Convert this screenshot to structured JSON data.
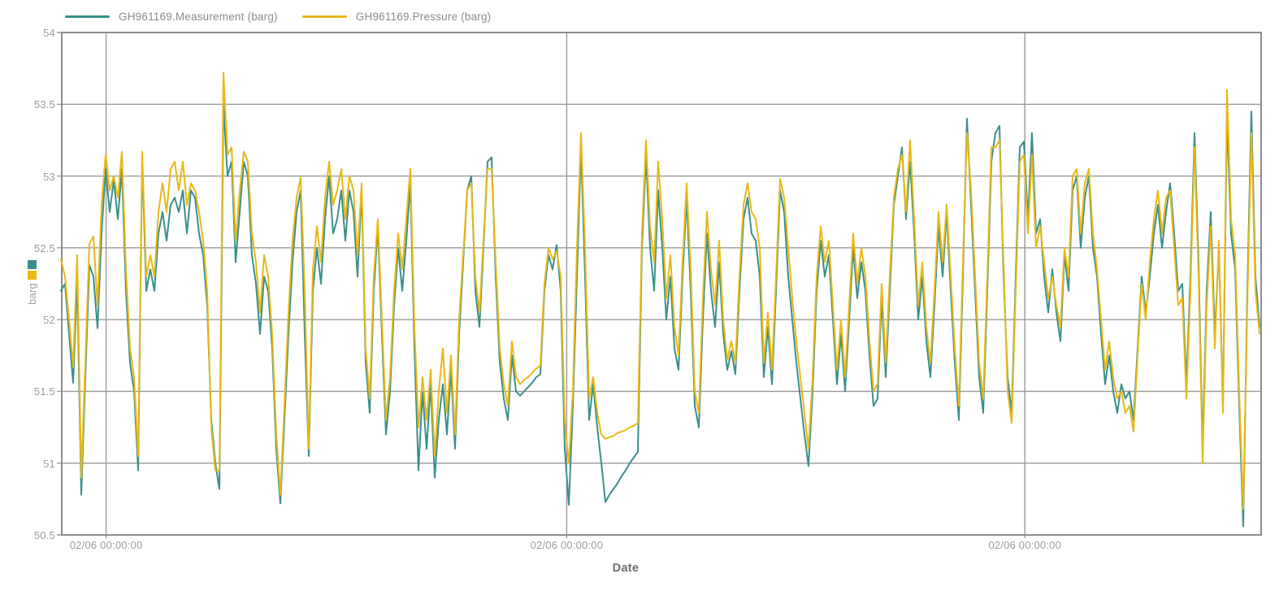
{
  "ui_colors": {
    "grid": "#999999",
    "axis_border": "#8D8D8D",
    "tick_text": "#9C9C9C",
    "legend_text": "#8A8A8A",
    "axis_title_text": "#6E6E6E"
  },
  "chart_data": {
    "type": "line",
    "title": "",
    "xlabel": "Date",
    "ylabel": "barg",
    "ylim": [
      50.5,
      54
    ],
    "yticks": [
      54,
      53.5,
      53,
      52.5,
      52,
      51.5,
      51,
      50.5
    ],
    "xticks": [
      {
        "pos": 0.037,
        "label": "02/06 00:00:00"
      },
      {
        "pos": 0.421,
        "label": "02/06 00:00:00"
      },
      {
        "pos": 0.803,
        "label": "02/06 00:00:00"
      }
    ],
    "grid": true,
    "legend_position": "top-left",
    "series": [
      {
        "name": "GH961169.Measurement (barg)",
        "color": "#3A8F8B",
        "values": [
          52.2,
          52.25,
          51.9,
          51.56,
          52.28,
          50.78,
          51.6,
          52.38,
          52.3,
          51.94,
          52.6,
          53.05,
          52.75,
          52.97,
          52.7,
          53.05,
          52.2,
          51.7,
          51.5,
          50.95,
          53.12,
          52.2,
          52.35,
          52.2,
          52.6,
          52.75,
          52.55,
          52.8,
          52.85,
          52.75,
          52.9,
          52.6,
          52.9,
          52.85,
          52.6,
          52.45,
          52.1,
          51.3,
          51.0,
          50.82,
          53.5,
          53.0,
          53.1,
          52.4,
          52.75,
          53.1,
          53.0,
          52.45,
          52.25,
          51.9,
          52.3,
          52.2,
          51.8,
          51.1,
          50.72,
          51.3,
          51.9,
          52.4,
          52.75,
          52.9,
          51.9,
          51.05,
          52.2,
          52.5,
          52.25,
          52.7,
          53.0,
          52.6,
          52.7,
          52.9,
          52.55,
          52.9,
          52.75,
          52.3,
          52.9,
          51.7,
          51.35,
          52.2,
          52.65,
          51.9,
          51.2,
          51.5,
          52.1,
          52.5,
          52.2,
          52.55,
          52.95,
          51.8,
          50.95,
          51.5,
          51.1,
          51.55,
          50.9,
          51.3,
          51.55,
          51.2,
          51.65,
          51.1,
          51.9,
          52.4,
          52.9,
          53.0,
          52.2,
          51.95,
          52.5,
          53.1,
          53.13,
          52.3,
          51.7,
          51.45,
          51.3,
          51.75,
          51.5,
          51.47,
          51.5,
          51.53,
          51.56,
          51.6,
          51.62,
          52.2,
          52.45,
          52.35,
          52.52,
          52.2,
          51.1,
          50.71,
          51.4,
          52.3,
          53.2,
          52.3,
          51.3,
          51.55,
          51.25,
          51.0,
          50.73,
          50.78,
          50.82,
          50.86,
          50.91,
          50.95,
          51.0,
          51.04,
          51.08,
          52.5,
          53.15,
          52.5,
          52.2,
          52.9,
          52.5,
          52.0,
          52.3,
          51.8,
          51.65,
          52.3,
          52.85,
          52.2,
          51.4,
          51.25,
          52.0,
          52.6,
          52.2,
          51.95,
          52.4,
          51.9,
          51.65,
          51.78,
          51.62,
          52.2,
          52.7,
          52.85,
          52.6,
          52.55,
          52.3,
          51.6,
          51.95,
          51.55,
          52.2,
          52.9,
          52.75,
          52.3,
          52.0,
          51.7,
          51.45,
          51.2,
          50.98,
          51.5,
          52.2,
          52.55,
          52.3,
          52.45,
          52.0,
          51.55,
          51.9,
          51.5,
          52.0,
          52.5,
          52.15,
          52.4,
          52.2,
          51.75,
          51.4,
          51.45,
          52.15,
          51.6,
          52.2,
          52.8,
          53.0,
          53.2,
          52.7,
          53.1,
          52.6,
          52.0,
          52.3,
          51.85,
          51.6,
          52.1,
          52.65,
          52.3,
          52.75,
          52.2,
          51.7,
          51.3,
          52.3,
          53.4,
          52.8,
          52.2,
          51.6,
          51.35,
          52.2,
          53.1,
          53.3,
          53.35,
          52.3,
          51.6,
          51.35,
          52.3,
          53.2,
          53.24,
          52.7,
          53.3,
          52.6,
          52.7,
          52.3,
          52.05,
          52.35,
          52.05,
          51.85,
          52.45,
          52.2,
          52.9,
          53.0,
          52.5,
          52.85,
          53.0,
          52.5,
          52.3,
          51.9,
          51.55,
          51.75,
          51.5,
          51.35,
          51.55,
          51.45,
          51.5,
          51.3,
          51.8,
          52.3,
          52.05,
          52.3,
          52.6,
          52.8,
          52.5,
          52.75,
          52.95,
          52.6,
          52.2,
          52.25,
          51.55,
          52.3,
          53.3,
          52.4,
          51.1,
          52.2,
          52.75,
          51.9,
          52.5,
          51.4,
          53.42,
          52.6,
          52.35,
          51.4,
          50.56,
          52.2,
          53.45,
          52.3,
          51.95
        ]
      },
      {
        "name": "GH961169.Pressure (barg)",
        "color": "#E8B816",
        "values": [
          52.42,
          52.3,
          52.0,
          51.67,
          52.45,
          50.9,
          51.7,
          52.53,
          52.58,
          52.1,
          52.8,
          53.15,
          52.9,
          53.0,
          52.85,
          53.17,
          52.35,
          51.8,
          51.6,
          51.05,
          53.17,
          52.3,
          52.45,
          52.3,
          52.75,
          52.95,
          52.75,
          53.05,
          53.1,
          52.9,
          53.1,
          52.8,
          52.95,
          52.9,
          52.75,
          52.55,
          52.2,
          51.25,
          50.95,
          50.95,
          53.72,
          53.15,
          53.2,
          52.55,
          52.9,
          53.17,
          53.1,
          52.6,
          52.4,
          52.05,
          52.45,
          52.3,
          51.9,
          51.2,
          50.78,
          51.4,
          52.05,
          52.55,
          52.85,
          52.99,
          52.2,
          51.1,
          52.35,
          52.65,
          52.4,
          52.85,
          53.1,
          52.8,
          52.9,
          53.05,
          52.7,
          53.0,
          52.9,
          52.45,
          52.95,
          51.8,
          51.45,
          52.3,
          52.7,
          52.0,
          51.3,
          51.6,
          52.2,
          52.6,
          52.35,
          52.7,
          53.05,
          51.95,
          51.25,
          51.6,
          51.3,
          51.65,
          51.05,
          51.5,
          51.8,
          51.35,
          51.75,
          51.2,
          52.0,
          52.45,
          52.9,
          52.95,
          52.3,
          52.05,
          52.55,
          53.05,
          53.05,
          52.4,
          51.8,
          51.55,
          51.4,
          51.85,
          51.6,
          51.55,
          51.58,
          51.6,
          51.63,
          51.66,
          51.68,
          52.25,
          52.5,
          52.42,
          52.48,
          52.3,
          51.3,
          51.0,
          51.5,
          52.5,
          53.3,
          52.5,
          51.45,
          51.6,
          51.35,
          51.2,
          51.17,
          51.18,
          51.19,
          51.21,
          51.22,
          51.23,
          51.25,
          51.26,
          51.28,
          52.6,
          53.25,
          52.65,
          52.4,
          53.1,
          52.7,
          52.15,
          52.45,
          51.95,
          51.75,
          52.4,
          52.95,
          52.35,
          51.5,
          51.35,
          52.15,
          52.75,
          52.35,
          52.1,
          52.55,
          52.0,
          51.72,
          51.85,
          51.7,
          52.3,
          52.8,
          52.95,
          52.75,
          52.7,
          52.5,
          51.7,
          52.05,
          51.65,
          52.3,
          52.98,
          52.85,
          52.5,
          52.15,
          51.85,
          51.6,
          51.35,
          51.1,
          51.6,
          52.3,
          52.65,
          52.4,
          52.55,
          52.1,
          51.65,
          52.0,
          51.6,
          52.1,
          52.6,
          52.25,
          52.5,
          52.3,
          51.85,
          51.5,
          51.55,
          52.25,
          51.7,
          52.3,
          52.85,
          53.05,
          53.15,
          52.75,
          53.25,
          52.7,
          52.1,
          52.4,
          51.95,
          51.7,
          52.2,
          52.75,
          52.4,
          52.8,
          52.3,
          51.8,
          51.4,
          52.4,
          53.3,
          52.9,
          52.3,
          51.7,
          51.45,
          52.3,
          53.2,
          53.2,
          53.25,
          52.4,
          51.5,
          51.28,
          52.2,
          53.1,
          53.15,
          52.6,
          53.15,
          52.5,
          52.65,
          52.4,
          52.15,
          52.3,
          52.1,
          51.95,
          52.5,
          52.3,
          53.0,
          53.05,
          52.6,
          52.95,
          53.05,
          52.6,
          52.35,
          52.0,
          51.65,
          51.85,
          51.6,
          51.45,
          51.5,
          51.35,
          51.4,
          51.22,
          51.75,
          52.25,
          52.0,
          52.4,
          52.7,
          52.9,
          52.6,
          52.85,
          52.9,
          52.5,
          52.1,
          52.15,
          51.45,
          52.2,
          53.2,
          52.3,
          51.0,
          52.1,
          52.65,
          51.8,
          52.55,
          51.35,
          53.6,
          52.7,
          52.45,
          51.5,
          50.68,
          52.1,
          53.3,
          52.2,
          51.9
        ]
      }
    ]
  }
}
